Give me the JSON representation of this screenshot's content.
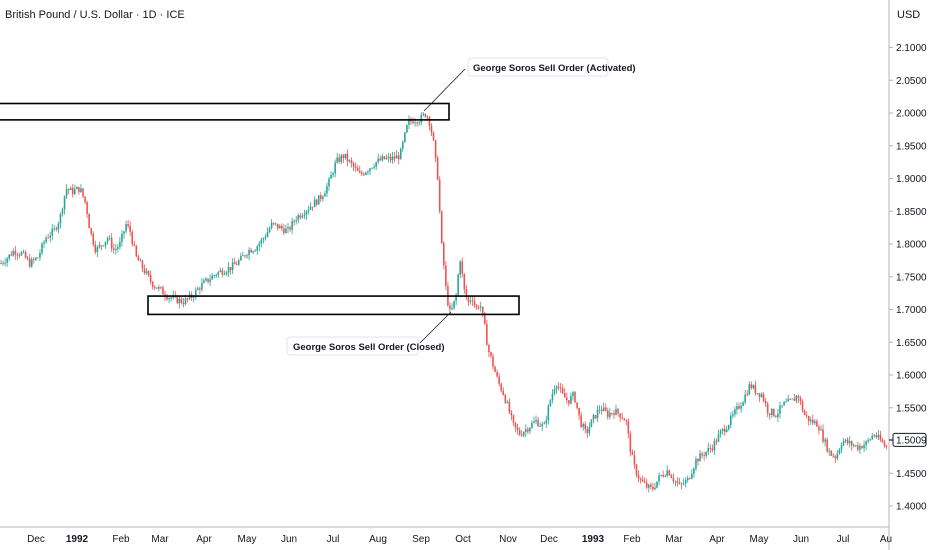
{
  "header": {
    "title": "British Pound / U.S. Dollar · 1D · ICE",
    "currency": "USD"
  },
  "price_tag": {
    "value": "1.5009"
  },
  "annotations": {
    "activated": "George Soros Sell Order (Activated)",
    "closed": "George Soros Sell Order (Closed)"
  },
  "colors": {
    "up": "#26a69a",
    "down": "#ef5350",
    "axis": "#b2b5be",
    "text": "#131722"
  },
  "chart_data": {
    "type": "candlestick",
    "title": "British Pound / U.S. Dollar · 1D · ICE",
    "y_unit": "USD",
    "ylim": [
      1.37,
      2.15
    ],
    "y_ticks": [
      "2.1000",
      "2.0500",
      "2.0000",
      "1.9500",
      "1.9000",
      "1.8500",
      "1.8000",
      "1.7500",
      "1.7000",
      "1.6500",
      "1.6000",
      "1.5500",
      "1.5000",
      "1.4500",
      "1.4000"
    ],
    "x_ticks": [
      {
        "label": "Dec",
        "bold": false
      },
      {
        "label": "1992",
        "bold": true
      },
      {
        "label": "Feb",
        "bold": false
      },
      {
        "label": "Mar",
        "bold": false
      },
      {
        "label": "Apr",
        "bold": false
      },
      {
        "label": "May",
        "bold": false
      },
      {
        "label": "Jun",
        "bold": false
      },
      {
        "label": "Jul",
        "bold": false
      },
      {
        "label": "Aug",
        "bold": false
      },
      {
        "label": "Sep",
        "bold": false
      },
      {
        "label": "Oct",
        "bold": false
      },
      {
        "label": "Nov",
        "bold": false
      },
      {
        "label": "Dec",
        "bold": false
      },
      {
        "label": "1993",
        "bold": true
      },
      {
        "label": "Feb",
        "bold": false
      },
      {
        "label": "Mar",
        "bold": false
      },
      {
        "label": "Apr",
        "bold": false
      },
      {
        "label": "May",
        "bold": false
      },
      {
        "label": "Jun",
        "bold": false
      },
      {
        "label": "Jul",
        "bold": false
      },
      {
        "label": "Au",
        "bold": false
      }
    ],
    "price_path": [
      [
        0,
        1.77
      ],
      [
        8,
        1.78
      ],
      [
        14,
        1.79
      ],
      [
        22,
        1.785
      ],
      [
        30,
        1.77
      ],
      [
        38,
        1.78
      ],
      [
        46,
        1.81
      ],
      [
        54,
        1.82
      ],
      [
        60,
        1.84
      ],
      [
        66,
        1.885
      ],
      [
        72,
        1.88
      ],
      [
        80,
        1.885
      ],
      [
        86,
        1.86
      ],
      [
        90,
        1.82
      ],
      [
        96,
        1.79
      ],
      [
        102,
        1.8
      ],
      [
        108,
        1.81
      ],
      [
        114,
        1.79
      ],
      [
        120,
        1.8
      ],
      [
        126,
        1.83
      ],
      [
        130,
        1.82
      ],
      [
        136,
        1.78
      ],
      [
        144,
        1.76
      ],
      [
        152,
        1.74
      ],
      [
        160,
        1.73
      ],
      [
        168,
        1.72
      ],
      [
        176,
        1.715
      ],
      [
        184,
        1.712
      ],
      [
        192,
        1.72
      ],
      [
        200,
        1.735
      ],
      [
        208,
        1.745
      ],
      [
        216,
        1.755
      ],
      [
        224,
        1.76
      ],
      [
        232,
        1.765
      ],
      [
        240,
        1.775
      ],
      [
        248,
        1.79
      ],
      [
        256,
        1.795
      ],
      [
        264,
        1.81
      ],
      [
        272,
        1.83
      ],
      [
        280,
        1.825
      ],
      [
        288,
        1.82
      ],
      [
        296,
        1.84
      ],
      [
        304,
        1.85
      ],
      [
        312,
        1.86
      ],
      [
        320,
        1.87
      ],
      [
        328,
        1.89
      ],
      [
        336,
        1.925
      ],
      [
        344,
        1.935
      ],
      [
        352,
        1.92
      ],
      [
        360,
        1.905
      ],
      [
        368,
        1.915
      ],
      [
        376,
        1.925
      ],
      [
        384,
        1.93
      ],
      [
        392,
        1.93
      ],
      [
        400,
        1.935
      ],
      [
        404,
        1.96
      ],
      [
        408,
        1.985
      ],
      [
        414,
        1.99
      ],
      [
        420,
        1.99
      ],
      [
        426,
        2.0
      ],
      [
        430,
        1.985
      ],
      [
        434,
        1.95
      ],
      [
        436,
        1.92
      ],
      [
        438,
        1.9
      ],
      [
        440,
        1.84
      ],
      [
        442,
        1.79
      ],
      [
        444,
        1.765
      ],
      [
        446,
        1.73
      ],
      [
        448,
        1.71
      ],
      [
        450,
        1.695
      ],
      [
        452,
        1.7
      ],
      [
        456,
        1.72
      ],
      [
        460,
        1.78
      ],
      [
        464,
        1.73
      ],
      [
        468,
        1.71
      ],
      [
        472,
        1.72
      ],
      [
        476,
        1.7
      ],
      [
        480,
        1.71
      ],
      [
        484,
        1.68
      ],
      [
        488,
        1.64
      ],
      [
        492,
        1.62
      ],
      [
        498,
        1.59
      ],
      [
        504,
        1.57
      ],
      [
        508,
        1.55
      ],
      [
        514,
        1.52
      ],
      [
        520,
        1.51
      ],
      [
        528,
        1.52
      ],
      [
        536,
        1.53
      ],
      [
        544,
        1.52
      ],
      [
        550,
        1.56
      ],
      [
        556,
        1.59
      ],
      [
        562,
        1.57
      ],
      [
        568,
        1.56
      ],
      [
        574,
        1.57
      ],
      [
        580,
        1.53
      ],
      [
        586,
        1.51
      ],
      [
        592,
        1.53
      ],
      [
        600,
        1.55
      ],
      [
        608,
        1.54
      ],
      [
        614,
        1.545
      ],
      [
        620,
        1.54
      ],
      [
        626,
        1.53
      ],
      [
        630,
        1.49
      ],
      [
        634,
        1.46
      ],
      [
        640,
        1.44
      ],
      [
        646,
        1.43
      ],
      [
        652,
        1.425
      ],
      [
        660,
        1.445
      ],
      [
        668,
        1.455
      ],
      [
        674,
        1.44
      ],
      [
        680,
        1.43
      ],
      [
        688,
        1.44
      ],
      [
        696,
        1.47
      ],
      [
        704,
        1.48
      ],
      [
        712,
        1.49
      ],
      [
        720,
        1.51
      ],
      [
        728,
        1.525
      ],
      [
        736,
        1.545
      ],
      [
        744,
        1.565
      ],
      [
        750,
        1.585
      ],
      [
        756,
        1.575
      ],
      [
        762,
        1.57
      ],
      [
        768,
        1.545
      ],
      [
        776,
        1.54
      ],
      [
        784,
        1.555
      ],
      [
        792,
        1.56
      ],
      [
        798,
        1.57
      ],
      [
        804,
        1.54
      ],
      [
        810,
        1.53
      ],
      [
        818,
        1.525
      ],
      [
        824,
        1.5
      ],
      [
        830,
        1.48
      ],
      [
        836,
        1.475
      ],
      [
        842,
        1.5
      ],
      [
        850,
        1.495
      ],
      [
        858,
        1.49
      ],
      [
        866,
        1.495
      ],
      [
        874,
        1.51
      ],
      [
        880,
        1.5
      ],
      [
        886,
        1.49
      ]
    ],
    "zones": [
      {
        "name": "Sell Order (Activated) zone",
        "low": 1.9895,
        "high": 2.0145
      },
      {
        "name": "Sell Order (Closed) zone",
        "low": 1.6925,
        "high": 1.7205
      }
    ],
    "last_price": 1.5009,
    "grid": false,
    "legend": "none"
  }
}
